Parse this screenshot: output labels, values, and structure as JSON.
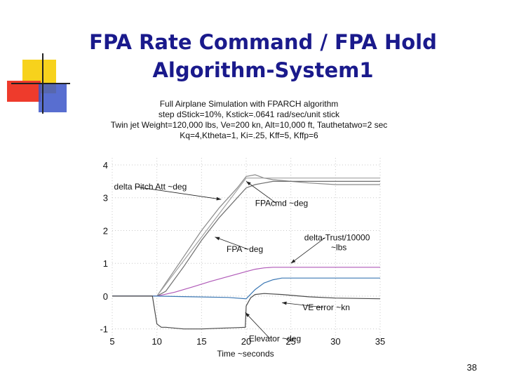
{
  "slide": {
    "title_line1": "FPA Rate Command  / FPA Hold",
    "title_line2": "Algorithm-System1",
    "page_number": "38"
  },
  "colors": {
    "title": "#1a1a8c",
    "deco_yellow": "#f7d21c",
    "deco_red": "#ee3b2c",
    "deco_blue": "#3b55c8"
  },
  "chart_data": {
    "type": "line",
    "title_lines": [
      "Full Airplane Simulation with FPARCH algorithm",
      "step dStick=10%, Kstick=.0641 rad/sec/unit stick",
      "Twin jet Weight=120,000 lbs, Ve=200 kn, Alt=10,000 ft, Tauthetatwo=2 sec",
      "Kq=4,Ktheta=1, Ki=.25, Kff=5, Kffp=6"
    ],
    "xlabel": "Time ~seconds",
    "ylabel": "",
    "xlim": [
      5,
      35
    ],
    "ylim": [
      -1.2,
      4
    ],
    "xticks": [
      "5",
      "10",
      "15",
      "20",
      "25",
      "30",
      "35"
    ],
    "yticks": [
      "4",
      "3",
      "2",
      "1",
      "0",
      "-1"
    ],
    "grid": true,
    "series": [
      {
        "name": "delta Pitch Att ~deg",
        "color": "#8a8a8a",
        "x": [
          5,
          10,
          11,
          13,
          15,
          17,
          19,
          20,
          21,
          22,
          23,
          25,
          27,
          30,
          35
        ],
        "y": [
          0,
          0,
          0.4,
          1.2,
          2.0,
          2.7,
          3.3,
          3.65,
          3.7,
          3.6,
          3.55,
          3.5,
          3.45,
          3.4,
          3.4
        ]
      },
      {
        "name": "FPAcmd ~deg",
        "color": "#a0a0a0",
        "x": [
          5,
          10,
          20,
          35
        ],
        "y": [
          0,
          0,
          3.6,
          3.6
        ]
      },
      {
        "name": "FPA ~deg",
        "color": "#6f6f6f",
        "x": [
          5,
          10,
          11,
          13,
          15,
          17,
          19,
          20,
          21,
          22,
          23,
          25,
          30,
          35
        ],
        "y": [
          0,
          0,
          0.15,
          0.9,
          1.7,
          2.4,
          3.0,
          3.3,
          3.4,
          3.45,
          3.5,
          3.5,
          3.5,
          3.5
        ]
      },
      {
        "name": "delta-Trust/10000 ~lbs",
        "color": "#b05ab8",
        "x": [
          5,
          10,
          12,
          14,
          16,
          18,
          20,
          21,
          22,
          23,
          25,
          30,
          35
        ],
        "y": [
          0,
          0,
          0.12,
          0.28,
          0.45,
          0.6,
          0.75,
          0.82,
          0.86,
          0.88,
          0.88,
          0.88,
          0.88
        ]
      },
      {
        "name": "VE error ~kn",
        "color": "#3c78b4",
        "x": [
          5,
          10,
          14,
          18,
          20,
          21,
          22,
          23,
          24,
          26,
          30,
          35
        ],
        "y": [
          0,
          0,
          -0.02,
          -0.04,
          -0.08,
          0.2,
          0.4,
          0.5,
          0.55,
          0.55,
          0.55,
          0.55
        ]
      },
      {
        "name": "Elevator ~deg",
        "color": "#4a4a4a",
        "x": [
          5,
          9.5,
          10,
          10.5,
          11,
          13,
          15,
          17,
          19,
          19.9,
          20,
          20.5,
          21,
          22,
          24,
          27,
          30,
          35
        ],
        "y": [
          0,
          0,
          -0.85,
          -0.95,
          -0.95,
          -1.0,
          -1.0,
          -0.98,
          -0.96,
          -0.95,
          -0.3,
          -0.05,
          0.05,
          0.08,
          0.05,
          -0.02,
          -0.06,
          -0.08
        ]
      }
    ],
    "annotations": [
      {
        "text": "delta Pitch Att ~deg",
        "x": 5.2,
        "y": 3.25,
        "ax": 17.2,
        "ay": 2.95
      },
      {
        "text": "FPAcmd ~deg",
        "x": 21.0,
        "y": 2.75,
        "ax": 20.0,
        "ay": 3.5
      },
      {
        "text": "FPA ~deg",
        "x": 17.8,
        "y": 1.35,
        "ax": 16.5,
        "ay": 1.8
      },
      {
        "text": "delta-Trust/10000",
        "x": 26.5,
        "y": 1.7,
        "ax": 25.0,
        "ay": 1.0
      },
      {
        "text": "~lbs",
        "x": 29.5,
        "y": 1.4
      },
      {
        "text": "VE error ~kn",
        "x": 26.3,
        "y": -0.43,
        "ax": 24.0,
        "ay": -0.2
      },
      {
        "text": "Elevator ~deg",
        "x": 20.3,
        "y": -1.38,
        "ax": 19.9,
        "ay": -0.5
      }
    ]
  }
}
